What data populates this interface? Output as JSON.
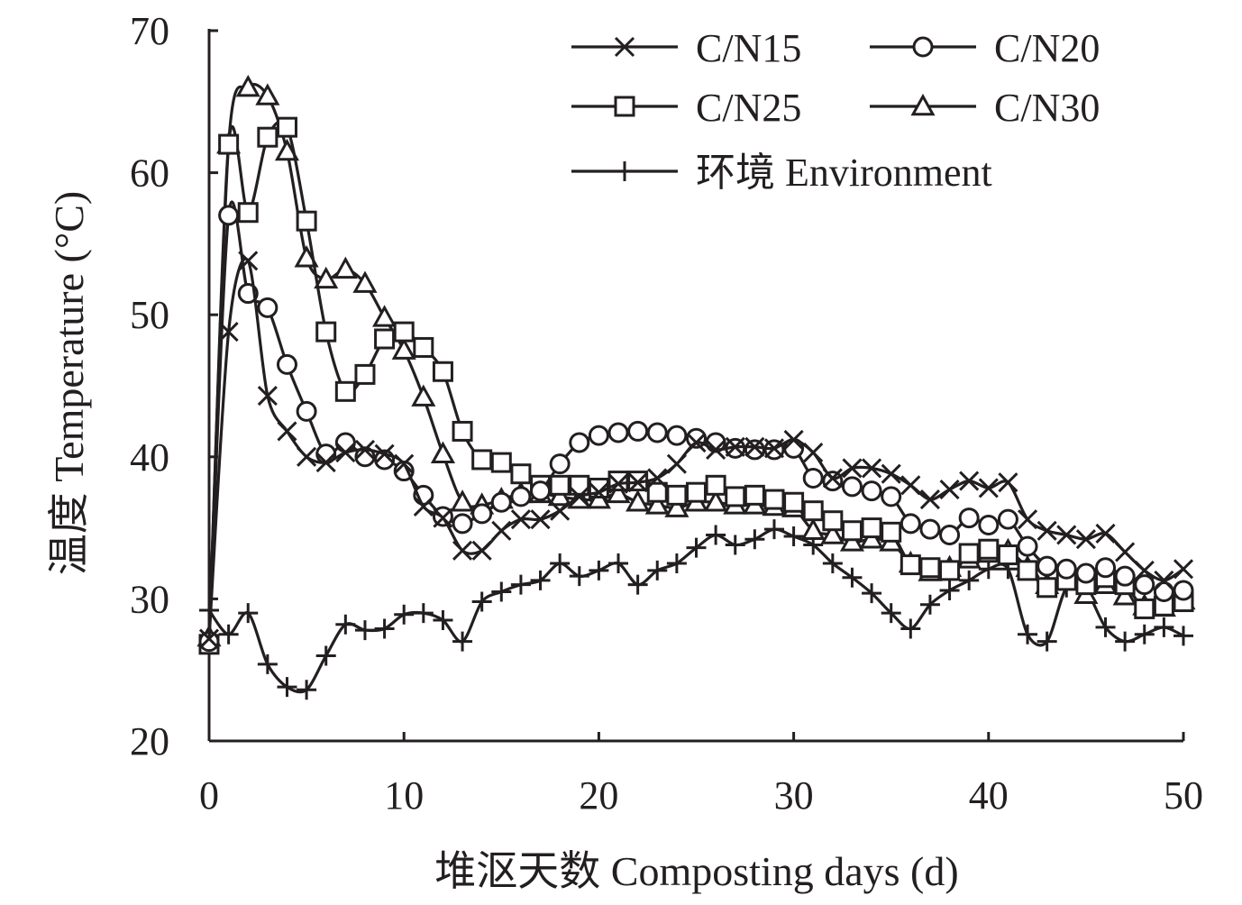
{
  "chart_data": {
    "type": "line",
    "xlabel": "堆沤天数 Composting days (d)",
    "ylabel": "温度 Temperature (°C)",
    "xlim": [
      0,
      50
    ],
    "ylim": [
      20,
      70
    ],
    "xticks": [
      "0",
      "10",
      "20",
      "30",
      "40",
      "50"
    ],
    "yticks": [
      "20",
      "30",
      "40",
      "50",
      "60",
      "70"
    ],
    "grid": false,
    "legend": "top-right",
    "line_color": "#231f20",
    "x": [
      0,
      1,
      2,
      3,
      4,
      5,
      6,
      7,
      8,
      9,
      10,
      11,
      12,
      13,
      14,
      15,
      16,
      17,
      18,
      19,
      20,
      21,
      22,
      23,
      24,
      25,
      26,
      27,
      28,
      29,
      30,
      31,
      32,
      33,
      34,
      35,
      36,
      37,
      38,
      39,
      40,
      41,
      42,
      43,
      44,
      45,
      46,
      47,
      48,
      49,
      50
    ],
    "series": [
      {
        "name": "C/N15",
        "marker": "x",
        "values": [
          27.2,
          48.8,
          53.8,
          44.3,
          41.8,
          40.0,
          39.6,
          40.3,
          40.5,
          40.2,
          39.5,
          36.5,
          35.7,
          33.4,
          33.4,
          34.8,
          35.6,
          35.6,
          36.2,
          37.2,
          37.5,
          38.1,
          38.2,
          38.5,
          39.5,
          41.0,
          40.5,
          40.7,
          40.7,
          40.6,
          41.2,
          40.3,
          38.5,
          39.2,
          39.2,
          38.8,
          38.0,
          37.0,
          37.7,
          38.3,
          37.8,
          38.2,
          35.6,
          34.8,
          34.5,
          34.2,
          34.6,
          33.3,
          32.0,
          31.3,
          32.1
        ]
      },
      {
        "name": "C/N20",
        "marker": "circle",
        "values": [
          27.0,
          57.0,
          51.5,
          50.5,
          46.5,
          43.2,
          40.2,
          41.0,
          40.0,
          39.8,
          39.0,
          37.3,
          35.8,
          35.3,
          36.0,
          36.8,
          37.2,
          37.6,
          39.5,
          41.0,
          41.5,
          41.7,
          41.8,
          41.7,
          41.5,
          41.3,
          41.0,
          40.6,
          40.5,
          40.5,
          40.6,
          38.5,
          38.3,
          37.9,
          37.6,
          37.2,
          35.3,
          34.9,
          34.5,
          35.7,
          35.2,
          35.6,
          33.7,
          32.3,
          32.1,
          31.8,
          32.2,
          31.6,
          31.0,
          30.5,
          30.6
        ]
      },
      {
        "name": "C/N25",
        "marker": "square",
        "values": [
          26.8,
          62.0,
          57.2,
          62.5,
          63.2,
          56.6,
          48.8,
          44.6,
          45.8,
          48.3,
          48.8,
          47.7,
          46.0,
          41.8,
          39.8,
          39.6,
          38.8,
          38.0,
          38.0,
          38.0,
          37.8,
          38.3,
          38.3,
          37.5,
          37.3,
          37.5,
          38.0,
          37.2,
          37.3,
          37.0,
          36.8,
          36.2,
          35.5,
          34.8,
          35.0,
          34.7,
          32.4,
          32.2,
          32.0,
          33.2,
          33.5,
          33.1,
          32.0,
          30.8,
          31.3,
          31.0,
          31.5,
          31.0,
          29.3,
          29.5,
          29.8
        ]
      },
      {
        "name": "C/N30",
        "marker": "triangle",
        "values": [
          27.3,
          62.0,
          66.0,
          65.4,
          61.5,
          54.0,
          52.5,
          53.2,
          52.2,
          49.8,
          47.5,
          44.2,
          40.2,
          36.8,
          36.6,
          37.0,
          37.4,
          37.4,
          37.2,
          37.0,
          37.0,
          37.4,
          36.8,
          36.6,
          36.4,
          36.8,
          36.8,
          36.6,
          36.6,
          36.5,
          36.4,
          34.8,
          34.5,
          34.0,
          34.2,
          34.0,
          32.5,
          31.9,
          32.2,
          32.8,
          33.2,
          33.4,
          32.2,
          31.0,
          31.6,
          30.3,
          31.0,
          30.2,
          29.5,
          29.4,
          29.9
        ]
      },
      {
        "name": "环境 Environment",
        "marker": "plus",
        "values": [
          29.2,
          27.5,
          29.0,
          25.4,
          23.8,
          23.6,
          26.0,
          28.2,
          27.8,
          27.9,
          28.9,
          29.0,
          28.5,
          27.0,
          29.8,
          30.5,
          31.0,
          31.3,
          32.5,
          31.6,
          32.0,
          32.5,
          31.0,
          32.0,
          32.5,
          33.6,
          34.5,
          33.8,
          34.2,
          34.9,
          34.4,
          33.8,
          32.5,
          31.5,
          30.4,
          29.0,
          27.9,
          29.6,
          30.6,
          31.3,
          32.1,
          32.1,
          27.5,
          27.0,
          30.8,
          30.6,
          28.0,
          27.0,
          27.5,
          28.0,
          27.4
        ]
      }
    ]
  }
}
